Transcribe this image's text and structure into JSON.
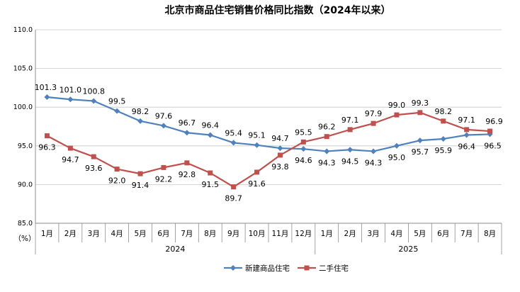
{
  "chart_data": {
    "type": "line",
    "title": "北京市商品住宅销售价格同比指数（2024年以来）",
    "y_unit_label": "（%）",
    "ylim": [
      85,
      110
    ],
    "yticks": [
      "85.0",
      "90.0",
      "95.0",
      "100.0",
      "105.0",
      "110.0"
    ],
    "categories": [
      "1月",
      "2月",
      "3月",
      "4月",
      "5月",
      "6月",
      "7月",
      "8月",
      "9月",
      "10月",
      "11月",
      "12月",
      "1月",
      "2月",
      "3月",
      "4月",
      "5月",
      "6月",
      "7月",
      "8月"
    ],
    "year_groups": [
      {
        "label": "2024",
        "count": 12
      },
      {
        "label": "2025",
        "count": 8
      }
    ],
    "grid": true,
    "legend_position": "bottom",
    "series": [
      {
        "name": "新建商品住宅",
        "color": "#4f81bd",
        "marker": "diamond",
        "values": [
          101.3,
          101.0,
          100.8,
          99.5,
          98.2,
          97.6,
          96.7,
          96.4,
          95.4,
          95.1,
          94.7,
          94.6,
          94.3,
          94.5,
          94.3,
          95.0,
          95.7,
          95.9,
          96.4,
          96.5
        ],
        "labels": [
          "101.3",
          "101.0",
          "100.8",
          "99.5",
          "98.2",
          "97.6",
          "96.7",
          "96.4",
          "95.4",
          "95.1",
          "94.7",
          "94.6",
          "94.3",
          "94.5",
          "94.3",
          "95.0",
          "95.7",
          "95.9",
          "96.4",
          "96.5"
        ]
      },
      {
        "name": "二手住宅",
        "color": "#c0504d",
        "marker": "square",
        "values": [
          96.3,
          94.7,
          93.6,
          92.0,
          91.4,
          92.2,
          92.8,
          91.5,
          89.7,
          91.6,
          93.8,
          95.5,
          96.2,
          97.1,
          97.9,
          99.0,
          99.3,
          98.2,
          97.1,
          96.9
        ],
        "labels": [
          "96.3",
          "94.7",
          "93.6",
          "92.0",
          "91.4",
          "92.2",
          "92.8",
          "91.5",
          "89.7",
          "91.6",
          "93.8",
          "95.5",
          "96.2",
          "97.1",
          "97.9",
          "99.0",
          "99.3",
          "98.2",
          "97.1",
          "96.9"
        ]
      }
    ]
  }
}
